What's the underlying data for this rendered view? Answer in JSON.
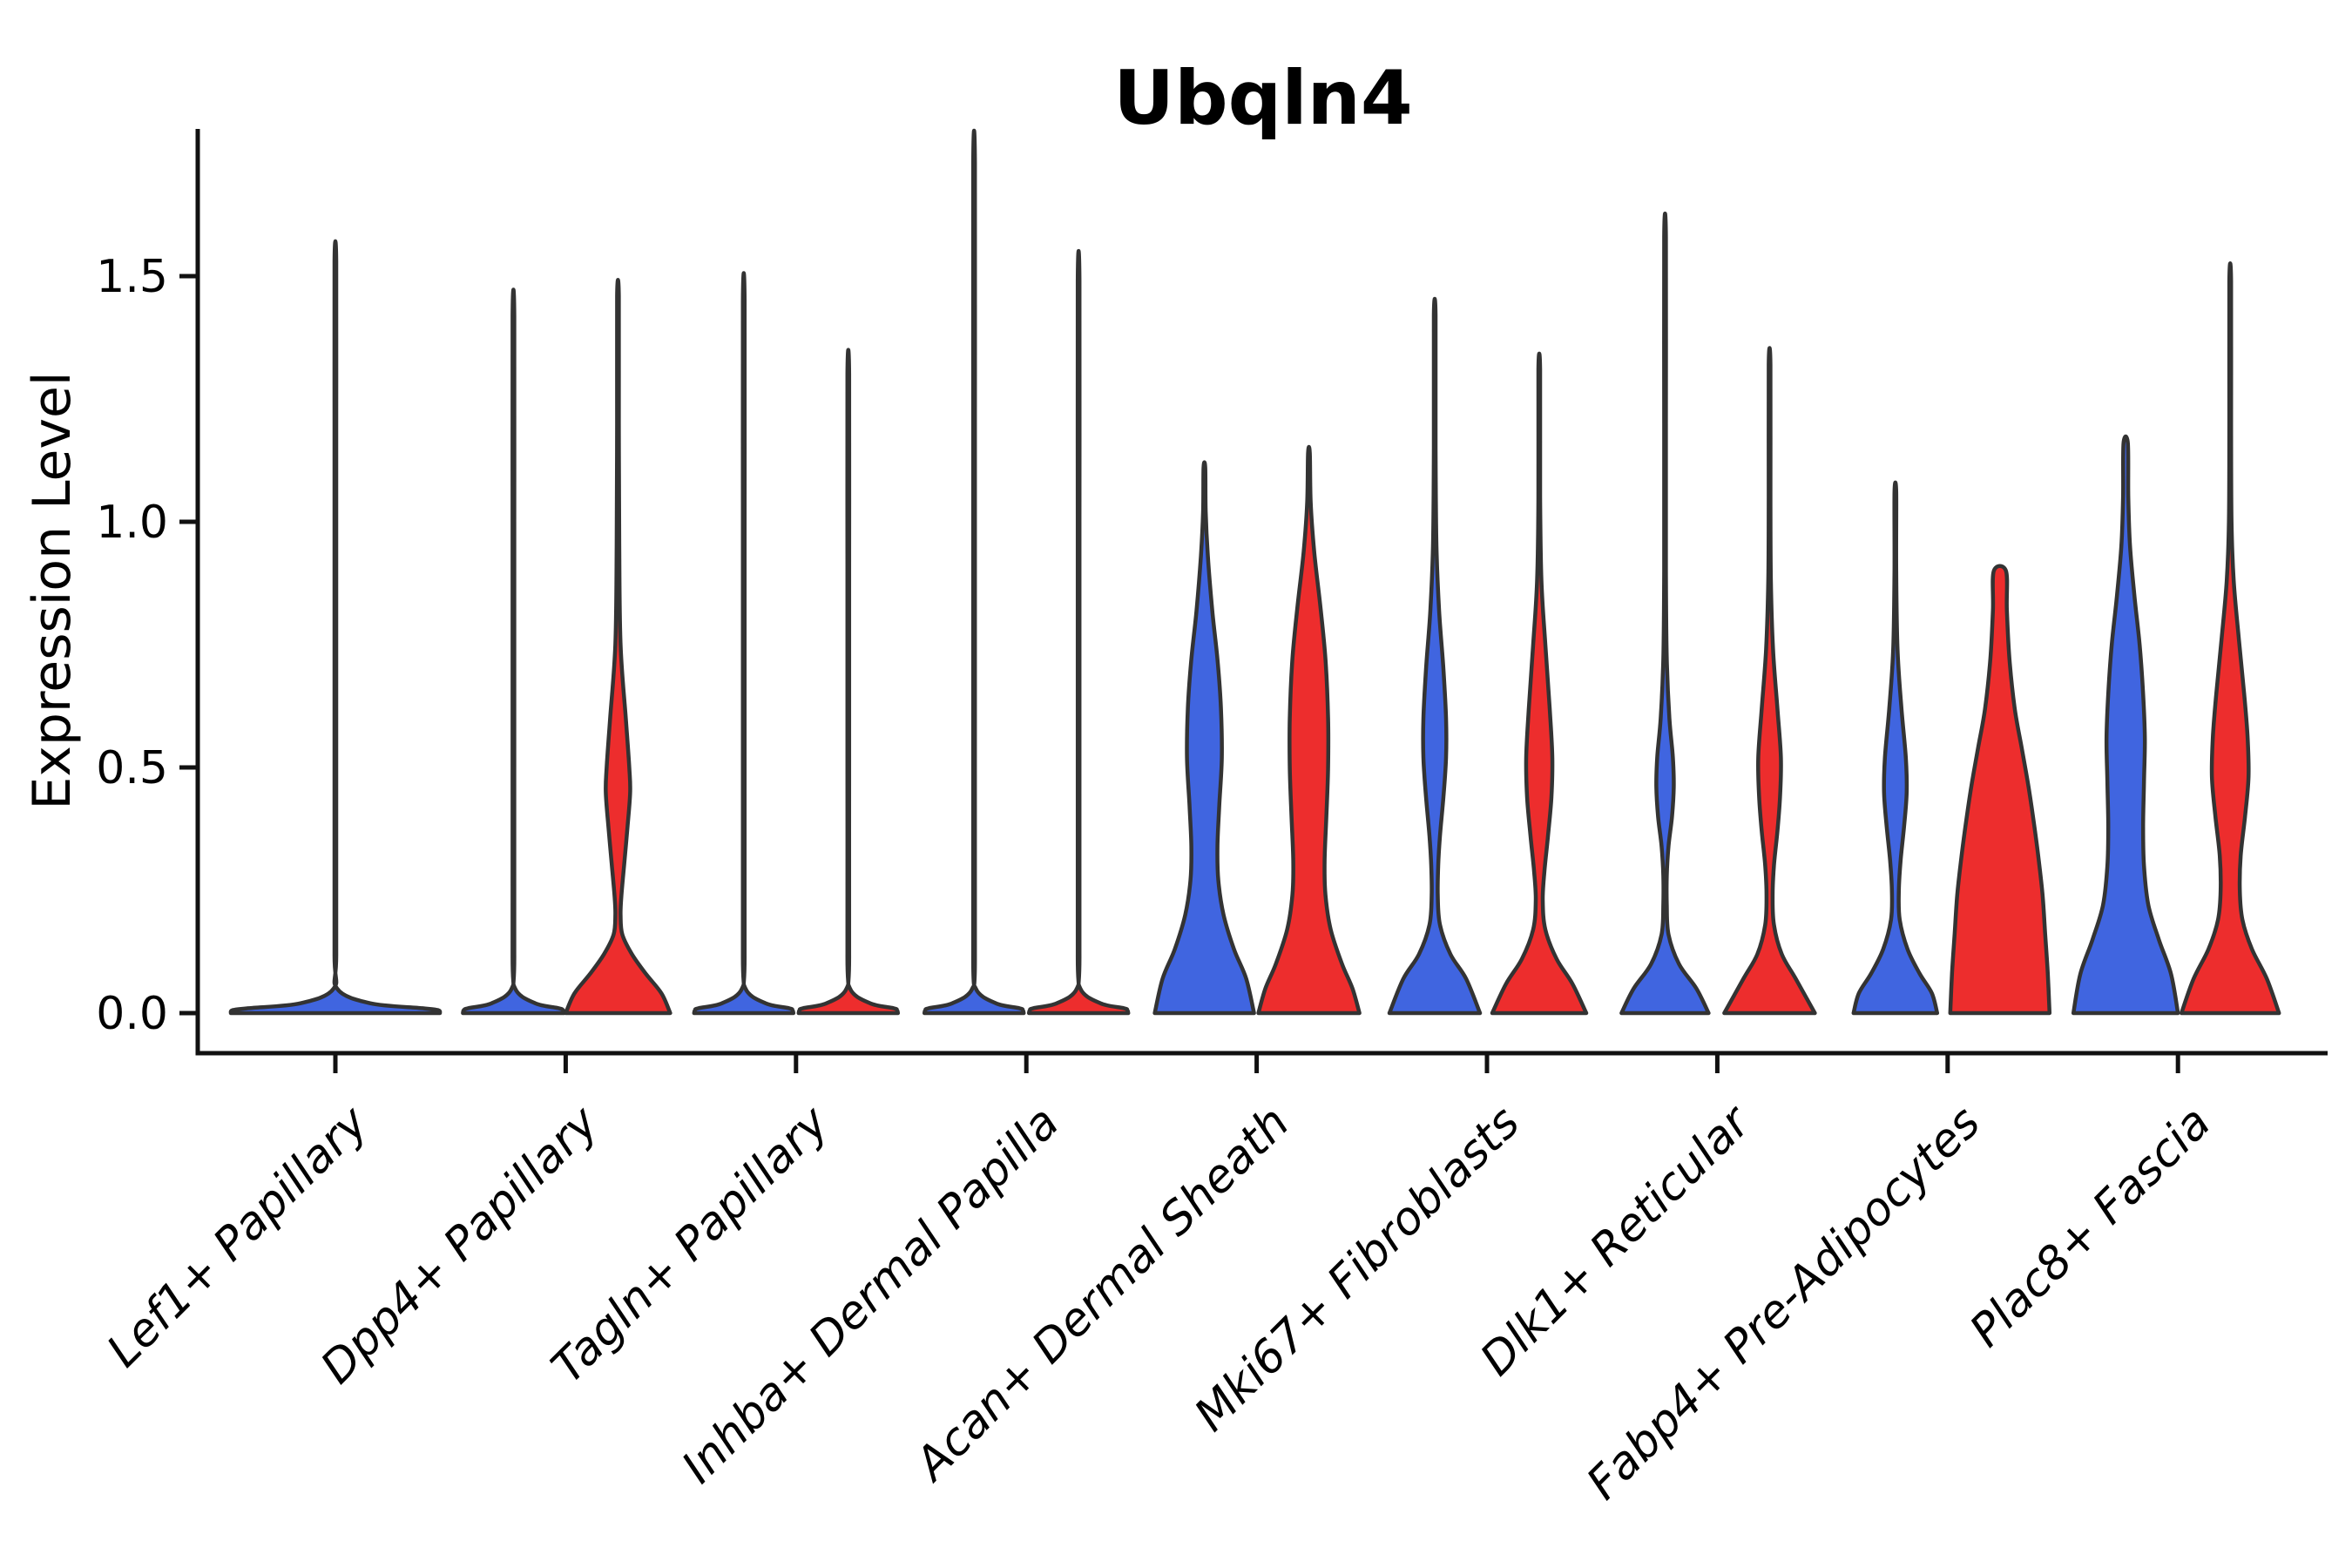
{
  "title": "Ubqln4",
  "axes": {
    "y_label": "Expression Level",
    "y_tick_labels": [
      "0.0",
      "0.5",
      "1.0",
      "1.5"
    ],
    "x_tick_labels": [
      "Lef1+ Papillary",
      "Dpp4+ Papillary",
      "Tagln+ Papillary",
      "Inhba+ Dermal Papilla",
      "Acan+ Dermal Sheath",
      "Mki67+ Fibroblasts",
      "Dlk1+ Reticular",
      "Fabp4+ Pre-Adipocytes",
      "Plac8+ Fascia"
    ]
  },
  "colors": {
    "group_blue": "#4065E0",
    "group_red": "#ED2D2D",
    "violin_outline": "#333333",
    "axis": "#111111",
    "background": "#ffffff"
  },
  "chart_data": {
    "type": "violin",
    "title": "Ubqln4",
    "xlabel": "",
    "ylabel": "Expression Level",
    "ylim": [
      0,
      1.8
    ],
    "y_ticks": [
      0,
      0.5,
      1.0,
      1.5
    ],
    "grid": false,
    "legend_position": "none",
    "categories": [
      "Lef1+ Papillary",
      "Dpp4+ Papillary",
      "Tagln+ Papillary",
      "Inhba+ Dermal Papilla",
      "Acan+ Dermal Sheath",
      "Mki67+ Fibroblasts",
      "Dlk1+ Reticular",
      "Fabp4+ Pre-Adipocytes",
      "Plac8+ Fascia"
    ],
    "groups": [
      {
        "id": "blue",
        "color": "#4065E0"
      },
      {
        "id": "red",
        "color": "#ED2D2D"
      }
    ],
    "violins": [
      {
        "category_index": 0,
        "group": "blue",
        "single": true,
        "max_expression": 1.53,
        "profile": [
          [
            1.53,
            1
          ],
          [
            1.2,
            1
          ],
          [
            0.8,
            1
          ],
          [
            0.4,
            1
          ],
          [
            0.12,
            1
          ],
          [
            0.05,
            2
          ],
          [
            0.02,
            40
          ],
          [
            0.01,
            100
          ],
          [
            0.006,
            118
          ],
          [
            0,
            120
          ]
        ]
      },
      {
        "category_index": 1,
        "group": "blue",
        "single": false,
        "max_expression": 1.42,
        "profile": [
          [
            1.42,
            1
          ],
          [
            1.0,
            1
          ],
          [
            0.5,
            1
          ],
          [
            0.12,
            1
          ],
          [
            0.05,
            2
          ],
          [
            0.02,
            25
          ],
          [
            0.01,
            52
          ],
          [
            0.006,
            57
          ],
          [
            0,
            58
          ]
        ]
      },
      {
        "category_index": 1,
        "group": "red",
        "single": false,
        "max_expression": 1.46,
        "profile": [
          [
            1.46,
            1
          ],
          [
            1.2,
            1
          ],
          [
            0.95,
            1.5
          ],
          [
            0.75,
            3
          ],
          [
            0.6,
            9
          ],
          [
            0.5,
            13
          ],
          [
            0.45,
            14
          ],
          [
            0.38,
            11
          ],
          [
            0.3,
            7
          ],
          [
            0.24,
            4
          ],
          [
            0.2,
            3
          ],
          [
            0.16,
            5
          ],
          [
            0.12,
            16
          ],
          [
            0.08,
            32
          ],
          [
            0.04,
            50
          ],
          [
            0,
            60
          ]
        ]
      },
      {
        "category_index": 2,
        "group": "blue",
        "single": false,
        "max_expression": 1.45,
        "profile": [
          [
            1.45,
            1
          ],
          [
            1.0,
            1
          ],
          [
            0.5,
            1
          ],
          [
            0.12,
            1
          ],
          [
            0.05,
            2
          ],
          [
            0.02,
            25
          ],
          [
            0.01,
            52
          ],
          [
            0.006,
            56
          ],
          [
            0,
            57
          ]
        ]
      },
      {
        "category_index": 2,
        "group": "red",
        "single": false,
        "max_expression": 1.3,
        "profile": [
          [
            1.3,
            1
          ],
          [
            0.9,
            1
          ],
          [
            0.5,
            1
          ],
          [
            0.12,
            1
          ],
          [
            0.05,
            2
          ],
          [
            0.02,
            25
          ],
          [
            0.01,
            52
          ],
          [
            0.006,
            56
          ],
          [
            0,
            57
          ]
        ]
      },
      {
        "category_index": 3,
        "group": "blue",
        "single": false,
        "max_expression": 1.73,
        "profile": [
          [
            1.73,
            1
          ],
          [
            1.2,
            1
          ],
          [
            0.6,
            1
          ],
          [
            0.12,
            1
          ],
          [
            0.05,
            2
          ],
          [
            0.02,
            25
          ],
          [
            0.01,
            52
          ],
          [
            0.006,
            56
          ],
          [
            0,
            57
          ]
        ]
      },
      {
        "category_index": 3,
        "group": "red",
        "single": false,
        "max_expression": 1.49,
        "profile": [
          [
            1.49,
            1
          ],
          [
            1.0,
            1
          ],
          [
            0.5,
            1
          ],
          [
            0.12,
            1
          ],
          [
            0.05,
            2
          ],
          [
            0.02,
            25
          ],
          [
            0.01,
            52
          ],
          [
            0.006,
            56
          ],
          [
            0,
            57
          ]
        ]
      },
      {
        "category_index": 4,
        "group": "blue",
        "single": false,
        "max_expression": 1.11,
        "profile": [
          [
            1.11,
            1
          ],
          [
            1.02,
            1.5
          ],
          [
            0.93,
            4
          ],
          [
            0.82,
            9
          ],
          [
            0.72,
            15
          ],
          [
            0.62,
            19
          ],
          [
            0.52,
            20
          ],
          [
            0.42,
            17
          ],
          [
            0.34,
            15
          ],
          [
            0.27,
            16
          ],
          [
            0.2,
            22
          ],
          [
            0.13,
            34
          ],
          [
            0.07,
            48
          ],
          [
            0,
            57
          ]
        ]
      },
      {
        "category_index": 4,
        "group": "red",
        "single": false,
        "max_expression": 1.14,
        "profile": [
          [
            1.14,
            1
          ],
          [
            1.04,
            2
          ],
          [
            0.94,
            6
          ],
          [
            0.83,
            13
          ],
          [
            0.72,
            19
          ],
          [
            0.6,
            22
          ],
          [
            0.5,
            22
          ],
          [
            0.4,
            20
          ],
          [
            0.31,
            18
          ],
          [
            0.24,
            19
          ],
          [
            0.17,
            25
          ],
          [
            0.1,
            38
          ],
          [
            0.05,
            50
          ],
          [
            0,
            58
          ]
        ]
      },
      {
        "category_index": 5,
        "group": "blue",
        "single": false,
        "max_expression": 1.42,
        "profile": [
          [
            1.42,
            1
          ],
          [
            1.15,
            1
          ],
          [
            0.95,
            2
          ],
          [
            0.82,
            5
          ],
          [
            0.7,
            10
          ],
          [
            0.6,
            13
          ],
          [
            0.52,
            13
          ],
          [
            0.44,
            10
          ],
          [
            0.36,
            6
          ],
          [
            0.3,
            4
          ],
          [
            0.24,
            3.5
          ],
          [
            0.18,
            6
          ],
          [
            0.12,
            18
          ],
          [
            0.07,
            36
          ],
          [
            0,
            52
          ]
        ]
      },
      {
        "category_index": 5,
        "group": "red",
        "single": false,
        "max_expression": 1.31,
        "profile": [
          [
            1.31,
            1
          ],
          [
            1.05,
            1
          ],
          [
            0.88,
            2.5
          ],
          [
            0.75,
            7
          ],
          [
            0.62,
            12
          ],
          [
            0.52,
            15
          ],
          [
            0.44,
            14
          ],
          [
            0.36,
            10
          ],
          [
            0.29,
            6
          ],
          [
            0.23,
            4
          ],
          [
            0.17,
            7
          ],
          [
            0.11,
            20
          ],
          [
            0.06,
            38
          ],
          [
            0,
            54
          ]
        ]
      },
      {
        "category_index": 6,
        "group": "blue",
        "single": false,
        "max_expression": 1.58,
        "profile": [
          [
            1.58,
            1
          ],
          [
            1.2,
            1
          ],
          [
            0.9,
            1
          ],
          [
            0.72,
            2
          ],
          [
            0.6,
            5
          ],
          [
            0.52,
            9
          ],
          [
            0.46,
            10
          ],
          [
            0.4,
            8
          ],
          [
            0.34,
            4
          ],
          [
            0.28,
            2
          ],
          [
            0.22,
            2
          ],
          [
            0.16,
            4
          ],
          [
            0.1,
            16
          ],
          [
            0.05,
            36
          ],
          [
            0,
            50
          ]
        ]
      },
      {
        "category_index": 6,
        "group": "red",
        "single": false,
        "max_expression": 1.32,
        "profile": [
          [
            1.32,
            1
          ],
          [
            1.05,
            1
          ],
          [
            0.88,
            1.5
          ],
          [
            0.74,
            4
          ],
          [
            0.62,
            9
          ],
          [
            0.52,
            13
          ],
          [
            0.44,
            12
          ],
          [
            0.37,
            9
          ],
          [
            0.3,
            5
          ],
          [
            0.24,
            3.5
          ],
          [
            0.18,
            5
          ],
          [
            0.12,
            14
          ],
          [
            0.07,
            30
          ],
          [
            0,
            52
          ]
        ]
      },
      {
        "category_index": 7,
        "group": "blue",
        "single": false,
        "max_expression": 1.06,
        "profile": [
          [
            1.06,
            1
          ],
          [
            0.9,
            1
          ],
          [
            0.74,
            2.5
          ],
          [
            0.62,
            7
          ],
          [
            0.52,
            12
          ],
          [
            0.45,
            13
          ],
          [
            0.38,
            10
          ],
          [
            0.31,
            6
          ],
          [
            0.25,
            4
          ],
          [
            0.19,
            5
          ],
          [
            0.13,
            14
          ],
          [
            0.08,
            28
          ],
          [
            0.04,
            42
          ],
          [
            0,
            48
          ]
        ]
      },
      {
        "category_index": 7,
        "group": "red",
        "single": false,
        "max_expression": 0.9,
        "flat_top": true,
        "profile": [
          [
            0.9,
            7
          ],
          [
            0.82,
            8
          ],
          [
            0.72,
            11
          ],
          [
            0.62,
            17
          ],
          [
            0.54,
            25
          ],
          [
            0.47,
            32
          ],
          [
            0.4,
            38
          ],
          [
            0.32,
            44
          ],
          [
            0.24,
            49
          ],
          [
            0.16,
            52
          ],
          [
            0.08,
            55
          ],
          [
            0,
            57
          ]
        ]
      },
      {
        "category_index": 8,
        "group": "blue",
        "single": false,
        "max_expression": 1.16,
        "profile": [
          [
            1.16,
            2.5
          ],
          [
            1.05,
            3
          ],
          [
            0.95,
            5
          ],
          [
            0.85,
            10
          ],
          [
            0.75,
            16
          ],
          [
            0.65,
            20
          ],
          [
            0.56,
            22
          ],
          [
            0.47,
            21
          ],
          [
            0.38,
            20
          ],
          [
            0.3,
            21
          ],
          [
            0.22,
            26
          ],
          [
            0.15,
            38
          ],
          [
            0.08,
            52
          ],
          [
            0,
            60
          ]
        ]
      },
      {
        "category_index": 8,
        "group": "red",
        "single": false,
        "max_expression": 1.49,
        "profile": [
          [
            1.49,
            1
          ],
          [
            1.2,
            1
          ],
          [
            1.0,
            1.5
          ],
          [
            0.88,
            4
          ],
          [
            0.76,
            10
          ],
          [
            0.65,
            16
          ],
          [
            0.56,
            20
          ],
          [
            0.48,
            21
          ],
          [
            0.4,
            17
          ],
          [
            0.32,
            12
          ],
          [
            0.25,
            11
          ],
          [
            0.19,
            14
          ],
          [
            0.13,
            25
          ],
          [
            0.07,
            42
          ],
          [
            0,
            56
          ]
        ]
      }
    ]
  }
}
